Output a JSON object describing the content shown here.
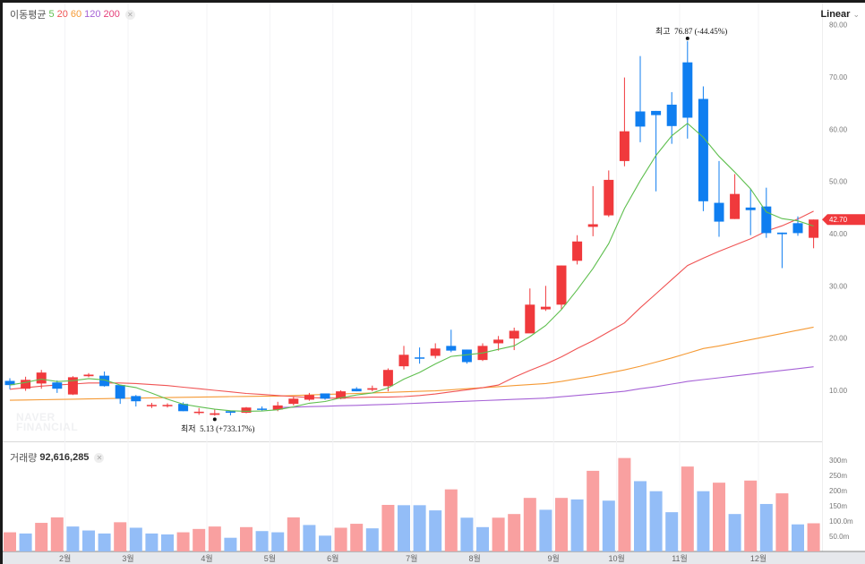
{
  "legend": {
    "label": "이동평균",
    "periods": [
      {
        "label": "5",
        "color": "#5fbf4f"
      },
      {
        "label": "20",
        "color": "#f05454"
      },
      {
        "label": "60",
        "color": "#f59a35"
      },
      {
        "label": "120",
        "color": "#a662d6"
      },
      {
        "label": "200",
        "color": "#e6407a"
      }
    ],
    "close_icon": "close-icon"
  },
  "scale_mode": {
    "label": "Linear",
    "icon": "chevron-down-icon"
  },
  "watermark": [
    "NAVER",
    "FINANCIAL"
  ],
  "current_price": {
    "label": "42.70",
    "color": "#f0393c"
  },
  "annotations": {
    "high": {
      "label": "최고",
      "value": "76.87 (-44.45%)"
    },
    "low": {
      "label": "최저",
      "value": "5.13 (+733.17%)"
    }
  },
  "volume": {
    "title": "거래량",
    "value": "92,616,285"
  },
  "chart_data": {
    "type": "candlestick",
    "colors": {
      "up": "#f0393c",
      "down": "#0f7ef0",
      "vol_up": "#f9a0a0",
      "vol_down": "#93bdf7"
    },
    "price_axis": {
      "ticks": [
        {
          "label": "80.00",
          "value": 80
        },
        {
          "label": "70.00",
          "value": 70
        },
        {
          "label": "60.00",
          "value": 60
        },
        {
          "label": "50.00",
          "value": 50
        },
        {
          "label": "40.00",
          "value": 40
        },
        {
          "label": "30.00",
          "value": 30
        },
        {
          "label": "20.00",
          "value": 20
        },
        {
          "label": "10.00",
          "value": 10
        }
      ],
      "scale": "linear"
    },
    "volume_axis": {
      "ticks": [
        {
          "label": "300m",
          "value": 300
        },
        {
          "label": "250m",
          "value": 250
        },
        {
          "label": "200m",
          "value": 200
        },
        {
          "label": "150m",
          "value": 150
        },
        {
          "label": "100.0m",
          "value": 100
        },
        {
          "label": "50.0m",
          "value": 50
        }
      ],
      "unit": "m"
    },
    "x_ticks": [
      {
        "label": "2월",
        "at": 3.5
      },
      {
        "label": "3월",
        "at": 7.5
      },
      {
        "label": "4월",
        "at": 12.5
      },
      {
        "label": "5월",
        "at": 16.5
      },
      {
        "label": "6월",
        "at": 20.5
      },
      {
        "label": "7월",
        "at": 25.5
      },
      {
        "label": "8월",
        "at": 29.5
      },
      {
        "label": "9월",
        "at": 34.5
      },
      {
        "label": "10월",
        "at": 38.5
      },
      {
        "label": "11월",
        "at": 42.5
      },
      {
        "label": "12월",
        "at": 47.5
      }
    ],
    "ohlc": [
      [
        11.8,
        12.3,
        10.2,
        11.0
      ],
      [
        10.3,
        12.6,
        9.9,
        12.0
      ],
      [
        11.3,
        13.9,
        10.3,
        13.4
      ],
      [
        11.5,
        11.9,
        9.5,
        10.3
      ],
      [
        9.2,
        12.7,
        9.1,
        12.5
      ],
      [
        12.7,
        13.3,
        12.5,
        13.0
      ],
      [
        12.8,
        13.6,
        10.7,
        10.8
      ],
      [
        11.0,
        11.0,
        7.4,
        8.4
      ],
      [
        8.9,
        9.1,
        6.9,
        7.9
      ],
      [
        7.2,
        7.6,
        6.6,
        7.2
      ],
      [
        7.2,
        7.5,
        6.7,
        7.2
      ],
      [
        7.4,
        7.7,
        6.0,
        6.0
      ],
      [
        5.8,
        6.6,
        5.3,
        5.9
      ],
      [
        5.3,
        6.3,
        5.13,
        5.6
      ],
      [
        6.0,
        6.1,
        5.2,
        5.7
      ],
      [
        5.7,
        6.8,
        5.6,
        6.7
      ],
      [
        6.5,
        6.9,
        6.1,
        6.3
      ],
      [
        6.3,
        7.8,
        6.0,
        7.1
      ],
      [
        7.4,
        8.7,
        7.1,
        8.4
      ],
      [
        8.2,
        9.5,
        8.0,
        9.1
      ],
      [
        9.4,
        9.4,
        8.2,
        8.4
      ],
      [
        8.4,
        10.0,
        8.3,
        9.8
      ],
      [
        10.3,
        10.6,
        9.8,
        9.8
      ],
      [
        10.1,
        10.9,
        9.8,
        10.4
      ],
      [
        10.8,
        14.2,
        9.8,
        13.9
      ],
      [
        14.6,
        18.5,
        14.0,
        16.8
      ],
      [
        16.3,
        18.2,
        15.1,
        16.2
      ],
      [
        16.6,
        19.0,
        16.1,
        18.0
      ],
      [
        18.5,
        21.6,
        17.3,
        17.6
      ],
      [
        17.8,
        17.8,
        15.1,
        15.4
      ],
      [
        15.8,
        19.0,
        15.6,
        18.5
      ],
      [
        19.0,
        20.4,
        17.6,
        19.7
      ],
      [
        19.9,
        22.0,
        17.7,
        21.4
      ],
      [
        20.9,
        29.5,
        21.0,
        26.4
      ],
      [
        25.5,
        30.0,
        25.2,
        26.0
      ],
      [
        26.4,
        33.9,
        25.5,
        33.9
      ],
      [
        34.8,
        39.7,
        34.1,
        38.5
      ],
      [
        41.3,
        49.1,
        39.5,
        41.8
      ],
      [
        43.5,
        52.1,
        43.2,
        50.3
      ],
      [
        53.9,
        69.9,
        52.9,
        59.6
      ],
      [
        63.4,
        74.0,
        57.5,
        60.5
      ],
      [
        63.5,
        63.5,
        48.1,
        62.7
      ],
      [
        64.7,
        67.1,
        57.2,
        60.6
      ],
      [
        72.8,
        76.87,
        58.2,
        62.2
      ],
      [
        65.8,
        68.2,
        44.3,
        46.2
      ],
      [
        45.9,
        53.9,
        39.4,
        42.3
      ],
      [
        42.8,
        51.4,
        42.8,
        47.6
      ],
      [
        45.0,
        48.6,
        39.7,
        44.5
      ],
      [
        45.2,
        48.8,
        39.2,
        40.1
      ],
      [
        40.2,
        40.2,
        33.4,
        39.9
      ],
      [
        42.0,
        43.3,
        39.6,
        40.1
      ],
      [
        39.2,
        42.7,
        37.2,
        42.7
      ]
    ],
    "volume_m": [
      63,
      59,
      94,
      112,
      82,
      69,
      59,
      96,
      78,
      59,
      56,
      63,
      74,
      82,
      45,
      80,
      67,
      63,
      112,
      87,
      52,
      78,
      91,
      76,
      153,
      152,
      152,
      135,
      204,
      111,
      80,
      111,
      123,
      176,
      137,
      176,
      171,
      265,
      167,
      307,
      231,
      198,
      129,
      279,
      198,
      226,
      123,
      233,
      156,
      191,
      89,
      92.6
    ],
    "volume_dir": [
      "up",
      "down",
      "up",
      "up",
      "down",
      "down",
      "down",
      "up",
      "down",
      "down",
      "down",
      "up",
      "up",
      "up",
      "down",
      "up",
      "down",
      "down",
      "up",
      "down",
      "down",
      "up",
      "up",
      "down",
      "up",
      "down",
      "down",
      "down",
      "up",
      "down",
      "down",
      "up",
      "up",
      "up",
      "down",
      "up",
      "down",
      "up",
      "down",
      "up",
      "down",
      "down",
      "down",
      "up",
      "down",
      "up",
      "down",
      "up",
      "down",
      "up",
      "down",
      "up"
    ],
    "ma20": [
      10.2,
      10.5,
      10.8,
      11.0,
      11.2,
      11.4,
      11.4,
      11.4,
      11.3,
      11.1,
      10.9,
      10.6,
      10.3,
      10.0,
      9.7,
      9.4,
      9.2,
      9.0,
      8.8,
      8.6,
      8.5,
      8.5,
      8.6,
      8.7,
      8.7,
      8.8,
      9.0,
      9.3,
      9.7,
      10.1,
      10.5,
      11.0,
      12.5,
      13.8,
      15.0,
      16.4,
      18.0,
      19.5,
      21.2,
      22.9,
      25.8,
      28.5,
      31.2,
      33.9,
      35.3,
      36.6,
      37.8,
      39.0,
      40.5,
      41.5,
      42.8,
      44.3
    ],
    "ma60": [
      8.1,
      8.15,
      8.2,
      8.25,
      8.3,
      8.35,
      8.4,
      8.45,
      8.5,
      8.55,
      8.6,
      8.65,
      8.7,
      8.75,
      8.8,
      8.83,
      8.86,
      8.9,
      9.0,
      9.1,
      9.2,
      9.3,
      9.4,
      9.5,
      9.6,
      9.7,
      9.8,
      9.9,
      10.1,
      10.3,
      10.5,
      10.7,
      10.9,
      11.1,
      11.3,
      11.7,
      12.2,
      12.7,
      13.3,
      13.9,
      14.6,
      15.4,
      16.2,
      17.1,
      18.0,
      18.5,
      19.1,
      19.7,
      20.3,
      20.9,
      21.5,
      22.1
    ],
    "ma120": [
      null,
      null,
      null,
      null,
      null,
      null,
      null,
      null,
      null,
      null,
      null,
      null,
      null,
      null,
      null,
      null,
      null,
      6.7,
      6.78,
      6.87,
      6.95,
      7.04,
      7.12,
      7.21,
      7.3,
      7.42,
      7.54,
      7.66,
      7.78,
      7.9,
      8.02,
      8.14,
      8.26,
      8.38,
      8.5,
      8.76,
      9.02,
      9.28,
      9.54,
      9.8,
      10.3,
      10.7,
      11.2,
      11.7,
      12.05,
      12.4,
      12.75,
      13.1,
      13.45,
      13.8,
      14.15,
      14.5
    ]
  }
}
